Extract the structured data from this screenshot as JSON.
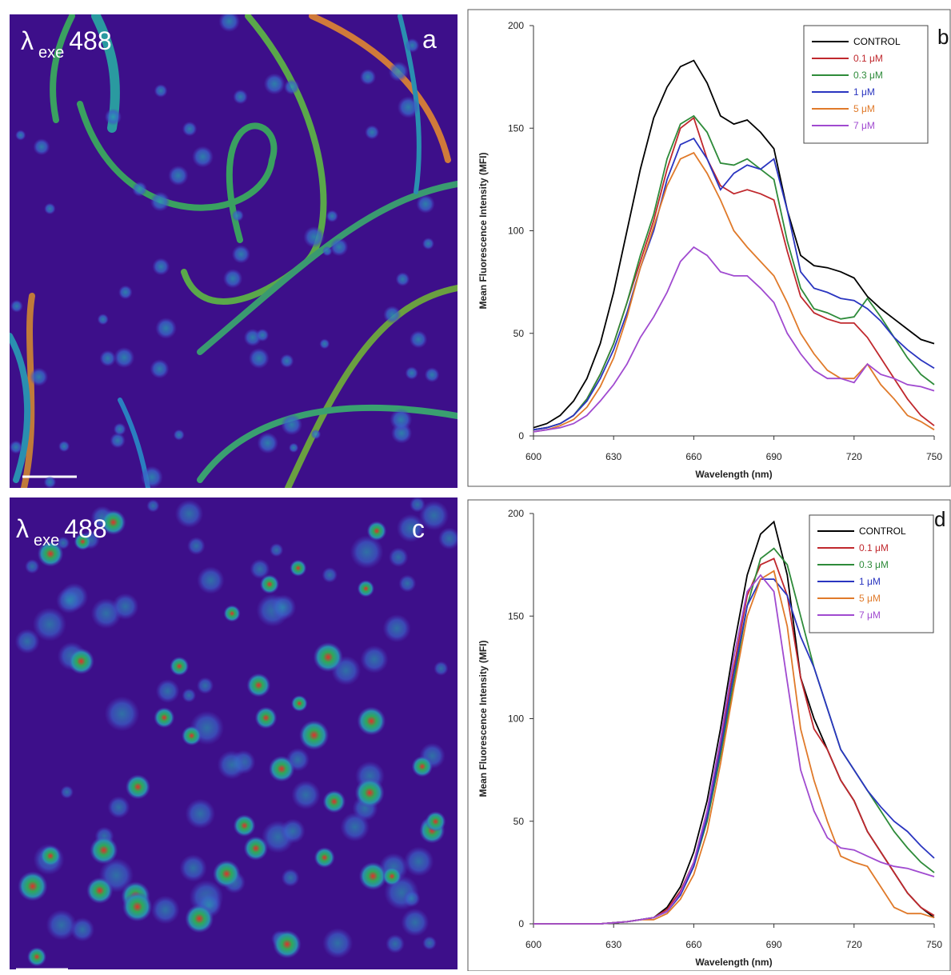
{
  "images": [
    {
      "symbol": "λ",
      "subscript": "exe",
      "value": "488",
      "label": "a"
    },
    {
      "symbol": "λ",
      "subscript": "exe",
      "value": "488",
      "label": "c"
    }
  ],
  "chart_data": [
    {
      "type": "line",
      "panel_label": "b",
      "x_label": "Wavelength (nm)",
      "y_label": "Mean Fluorescence Intensity (MFI)",
      "x": [
        600,
        605,
        610,
        615,
        620,
        625,
        630,
        635,
        640,
        645,
        650,
        655,
        660,
        665,
        670,
        675,
        680,
        685,
        690,
        695,
        700,
        705,
        710,
        715,
        720,
        725,
        730,
        735,
        740,
        745,
        750
      ],
      "xlim": [
        600,
        750
      ],
      "xticks": [
        600,
        630,
        660,
        690,
        720,
        750
      ],
      "ylim": [
        0,
        200
      ],
      "yticks": [
        0,
        50,
        100,
        150,
        200
      ],
      "legend": "upper right",
      "series": [
        {
          "name": "CONTROL",
          "color": "#000000",
          "values": [
            4,
            6,
            10,
            17,
            28,
            45,
            70,
            100,
            130,
            155,
            170,
            180,
            183,
            172,
            156,
            152,
            154,
            148,
            140,
            110,
            88,
            83,
            82,
            80,
            77,
            68,
            62,
            57,
            52,
            47,
            45
          ]
        },
        {
          "name": "0.1 μM",
          "color": "#c0282d",
          "values": [
            3,
            4,
            6,
            10,
            18,
            30,
            45,
            65,
            85,
            105,
            130,
            150,
            155,
            135,
            122,
            118,
            120,
            118,
            115,
            90,
            68,
            60,
            57,
            55,
            55,
            48,
            38,
            28,
            18,
            10,
            5
          ]
        },
        {
          "name": "0.3 μM",
          "color": "#2e8b3a",
          "values": [
            3,
            4,
            6,
            10,
            18,
            30,
            45,
            65,
            88,
            108,
            135,
            152,
            156,
            148,
            133,
            132,
            135,
            130,
            125,
            95,
            72,
            62,
            60,
            57,
            58,
            67,
            58,
            48,
            38,
            30,
            25
          ]
        },
        {
          "name": "1 μM",
          "color": "#2a35c0",
          "values": [
            3,
            4,
            6,
            10,
            17,
            28,
            42,
            60,
            82,
            100,
            125,
            142,
            145,
            135,
            120,
            128,
            132,
            130,
            135,
            110,
            80,
            72,
            70,
            67,
            66,
            62,
            56,
            48,
            42,
            37,
            33
          ]
        },
        {
          "name": "5 μM",
          "color": "#e07a2a",
          "values": [
            2,
            3,
            5,
            8,
            14,
            24,
            38,
            58,
            82,
            102,
            122,
            135,
            138,
            128,
            115,
            100,
            92,
            85,
            78,
            65,
            50,
            40,
            32,
            28,
            28,
            35,
            25,
            18,
            10,
            7,
            3
          ]
        },
        {
          "name": "7 μM",
          "color": "#a04ad0",
          "values": [
            2,
            3,
            4,
            6,
            10,
            17,
            25,
            35,
            48,
            58,
            70,
            85,
            92,
            88,
            80,
            78,
            78,
            72,
            65,
            50,
            40,
            32,
            28,
            28,
            26,
            35,
            30,
            28,
            25,
            24,
            22
          ]
        }
      ]
    },
    {
      "type": "line",
      "panel_label": "d",
      "x_label": "Wavelength (nm)",
      "y_label": "Mean Fluorescence Intensity (MFI)",
      "x": [
        600,
        605,
        610,
        615,
        620,
        625,
        630,
        635,
        640,
        645,
        650,
        655,
        660,
        665,
        670,
        675,
        680,
        685,
        690,
        695,
        700,
        705,
        710,
        715,
        720,
        725,
        730,
        735,
        740,
        745,
        750
      ],
      "xlim": [
        600,
        750
      ],
      "xticks": [
        600,
        630,
        660,
        690,
        720,
        750
      ],
      "ylim": [
        0,
        200
      ],
      "yticks": [
        0,
        50,
        100,
        150,
        200
      ],
      "legend": "upper right",
      "series": [
        {
          "name": "CONTROL",
          "color": "#000000",
          "values": [
            0,
            0,
            0,
            0,
            0,
            0,
            0.5,
            1,
            2,
            3,
            8,
            18,
            35,
            60,
            95,
            135,
            170,
            190,
            196,
            170,
            120,
            100,
            85,
            70,
            60,
            45,
            35,
            25,
            15,
            8,
            3
          ]
        },
        {
          "name": "0.1 μM",
          "color": "#c0282d",
          "values": [
            0,
            0,
            0,
            0,
            0,
            0,
            0.5,
            1,
            2,
            3,
            7,
            16,
            30,
            55,
            88,
            125,
            160,
            175,
            178,
            160,
            120,
            95,
            85,
            70,
            60,
            45,
            35,
            25,
            15,
            8,
            4
          ]
        },
        {
          "name": "0.3 μM",
          "color": "#2e8b3a",
          "values": [
            0,
            0,
            0,
            0,
            0,
            0,
            0.5,
            1,
            2,
            3,
            6,
            14,
            28,
            50,
            82,
            118,
            155,
            178,
            183,
            175,
            150,
            125,
            105,
            85,
            75,
            65,
            55,
            45,
            37,
            30,
            25
          ]
        },
        {
          "name": "1 μM",
          "color": "#2a35c0",
          "values": [
            0,
            0,
            0,
            0,
            0,
            0,
            0.5,
            1,
            2,
            3,
            6,
            14,
            28,
            52,
            85,
            122,
            155,
            168,
            168,
            160,
            140,
            125,
            105,
            85,
            75,
            65,
            57,
            50,
            45,
            38,
            32
          ]
        },
        {
          "name": "5 μM",
          "color": "#e07a2a",
          "values": [
            0,
            0,
            0,
            0,
            0,
            0,
            0.5,
            1,
            2,
            2,
            5,
            12,
            24,
            45,
            78,
            115,
            150,
            168,
            172,
            145,
            95,
            70,
            50,
            33,
            30,
            28,
            18,
            8,
            5,
            5,
            3
          ]
        },
        {
          "name": "7 μM",
          "color": "#a04ad0",
          "values": [
            0,
            0,
            0,
            0,
            0,
            0,
            0.5,
            1,
            2,
            3,
            6,
            15,
            30,
            55,
            90,
            130,
            162,
            170,
            162,
            118,
            75,
            55,
            42,
            37,
            36,
            33,
            30,
            28,
            27,
            25,
            23
          ]
        }
      ]
    }
  ]
}
